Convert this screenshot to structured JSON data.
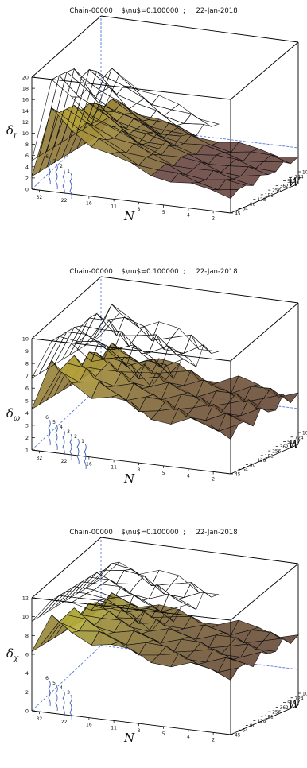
{
  "title": "Chain-00000    $\\nu$=0.100000  ;     22-Jan-2018",
  "x_axis": {
    "label": "N",
    "ticks": [
      "32",
      "22",
      "16",
      "11",
      "8",
      "5",
      "4",
      "2"
    ]
  },
  "w_axis": {
    "label": "W",
    "ticks": [
      "1024",
      "724",
      "512",
      "362",
      "256",
      "181",
      "128",
      "90",
      "64",
      "45"
    ]
  },
  "chart_data": [
    {
      "type": "surface",
      "zlabel_base": "δ",
      "zlabel_sub": "r",
      "zlim": [
        0,
        20
      ],
      "zticks": [
        "0",
        "2",
        "4",
        "6",
        "8",
        "10",
        "12",
        "14",
        "16",
        "18",
        "20"
      ],
      "contour_labels": [
        "6",
        "3",
        "2",
        "1"
      ],
      "peak_value": 18,
      "floor_value": 2
    },
    {
      "type": "surface",
      "zlabel_base": "δ",
      "zlabel_sub": "ω",
      "zlim": [
        1,
        10
      ],
      "zticks": [
        "1",
        "2",
        "3",
        "4",
        "5",
        "6",
        "7",
        "8",
        "9",
        "10"
      ],
      "contour_labels": [
        "6",
        "5",
        "4",
        "3",
        "2",
        "1"
      ],
      "peak_value": 9,
      "floor_value": 4
    },
    {
      "type": "surface",
      "zlabel_base": "δ",
      "zlabel_sub": "χ",
      "zlim": [
        0,
        12
      ],
      "zticks": [
        "0",
        "2",
        "4",
        "6",
        "8",
        "10",
        "12"
      ],
      "contour_labels": [
        "6",
        "5",
        "4",
        "3"
      ],
      "peak_value": 11,
      "floor_value": 6
    }
  ]
}
